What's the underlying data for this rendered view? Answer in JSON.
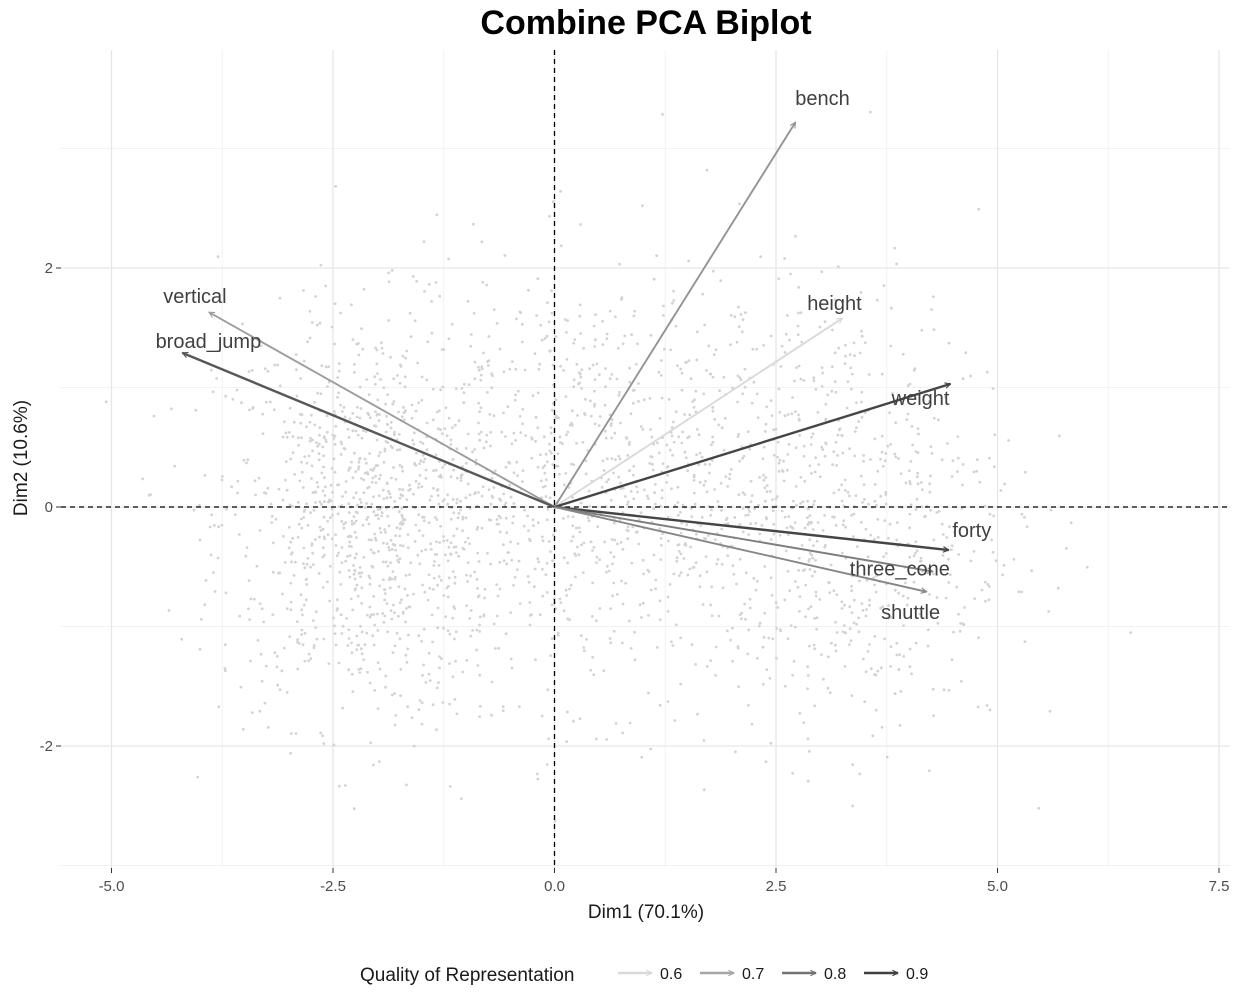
{
  "chart_data": {
    "type": "scatter",
    "title": "Combine PCA Biplot",
    "xlabel": "Dim1 (70.1%)",
    "ylabel": "Dim2 (10.6%)",
    "xlim": [
      -5.5,
      7.6
    ],
    "ylim": [
      -3.0,
      3.5
    ],
    "x_ticks": [
      "-5.0",
      "-2.5",
      "0.0",
      "2.5",
      "5.0",
      "7.5"
    ],
    "x_tick_values": [
      -5.0,
      -2.5,
      0.0,
      2.5,
      5.0,
      7.5
    ],
    "y_ticks": [
      "-2",
      "0",
      "2"
    ],
    "y_tick_values": [
      -2,
      0,
      2
    ],
    "grid": true,
    "reference_lines": {
      "x": 0,
      "y": 0,
      "style": "dashed"
    },
    "individuals_color": "#d3d3d3",
    "variables": [
      {
        "name": "bench",
        "x": 2.72,
        "y": 3.22,
        "cos2": 0.75,
        "label": "bench"
      },
      {
        "name": "height",
        "x": 3.25,
        "y": 1.58,
        "cos2": 0.6,
        "label": "height"
      },
      {
        "name": "weight",
        "x": 4.47,
        "y": 1.03,
        "cos2": 0.92,
        "label": "weight"
      },
      {
        "name": "vertical",
        "x": -3.9,
        "y": 1.63,
        "cos2": 0.73,
        "label": "vertical"
      },
      {
        "name": "broad_jump",
        "x": -4.2,
        "y": 1.29,
        "cos2": 0.88,
        "label": "broad_jump"
      },
      {
        "name": "forty",
        "x": 4.45,
        "y": -0.36,
        "cos2": 0.92,
        "label": "forty"
      },
      {
        "name": "three_cone",
        "x": 4.27,
        "y": -0.54,
        "cos2": 0.8,
        "label": "three_cone"
      },
      {
        "name": "shuttle",
        "x": 4.2,
        "y": -0.71,
        "cos2": 0.78,
        "label": "shuttle"
      }
    ],
    "legend": {
      "title": "Quality of Representation",
      "position": "bottom",
      "entries": [
        {
          "label": "0.6",
          "color": "#d9d9d9"
        },
        {
          "label": "0.7",
          "color": "#a6a6a6"
        },
        {
          "label": "0.8",
          "color": "#737373"
        },
        {
          "label": "0.9",
          "color": "#404040"
        }
      ]
    }
  }
}
